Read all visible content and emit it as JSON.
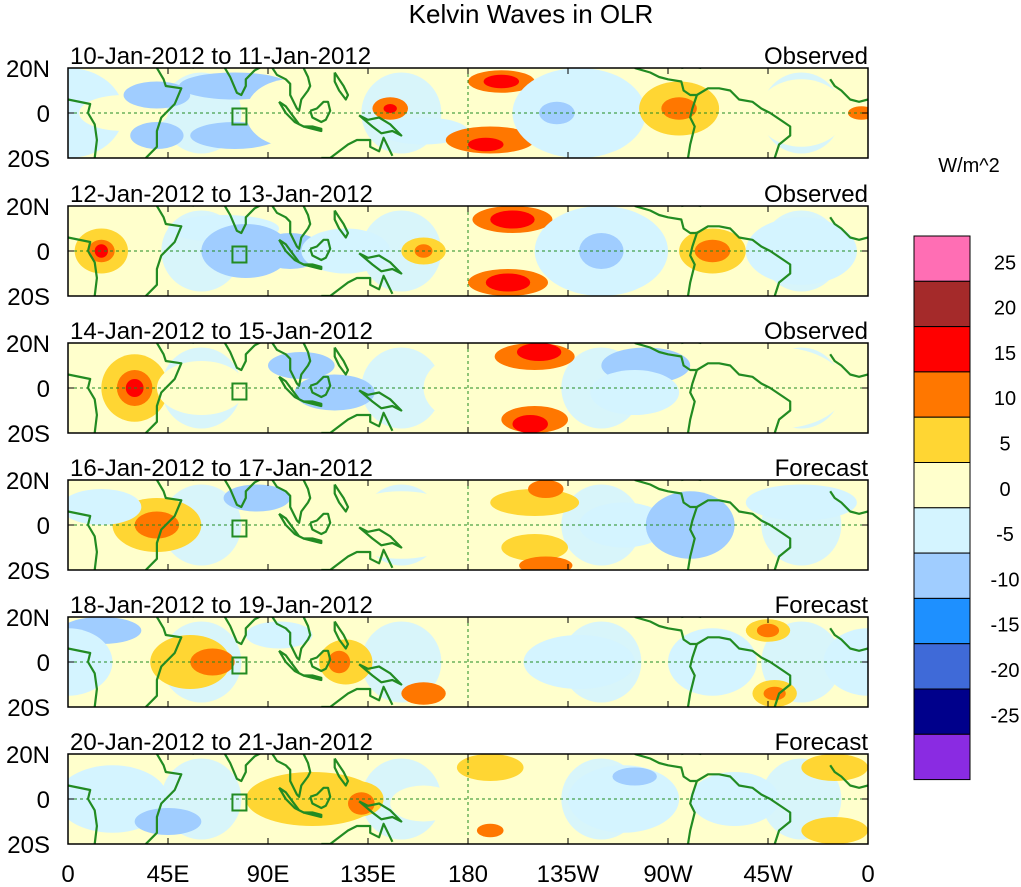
{
  "title": "Kelvin Waves in OLR",
  "units": "W/m^2",
  "lat_labels": [
    "20N",
    "0",
    "20S"
  ],
  "lon_labels": [
    "0",
    "45E",
    "90E",
    "135E",
    "180",
    "135W",
    "90W",
    "45W",
    "0"
  ],
  "panels": [
    {
      "period": "10-Jan-2012 to 11-Jan-2012",
      "status": "Observed"
    },
    {
      "period": "12-Jan-2012 to 13-Jan-2012",
      "status": "Observed"
    },
    {
      "period": "14-Jan-2012 to 15-Jan-2012",
      "status": "Observed"
    },
    {
      "period": "16-Jan-2012 to 17-Jan-2012",
      "status": "Forecast"
    },
    {
      "period": "18-Jan-2012 to 19-Jan-2012",
      "status": "Forecast"
    },
    {
      "period": "20-Jan-2012 to 21-Jan-2012",
      "status": "Forecast"
    }
  ],
  "colorbar": {
    "labels": [
      "25",
      "20",
      "15",
      "10",
      "5",
      "0",
      "-5",
      "-10",
      "-15",
      "-20",
      "-25"
    ],
    "colors": [
      "#ff6eb4",
      "#a52a2a",
      "#ff0000",
      "#ff7700",
      "#ffd633",
      "#ffffcc",
      "#d4f4ff",
      "#a0cdff",
      "#1e90ff",
      "#3f6ad8",
      "#00008b",
      "#8a2be2"
    ]
  },
  "colors": {
    "coast": "#228b22",
    "grid": "#228b22"
  }
}
